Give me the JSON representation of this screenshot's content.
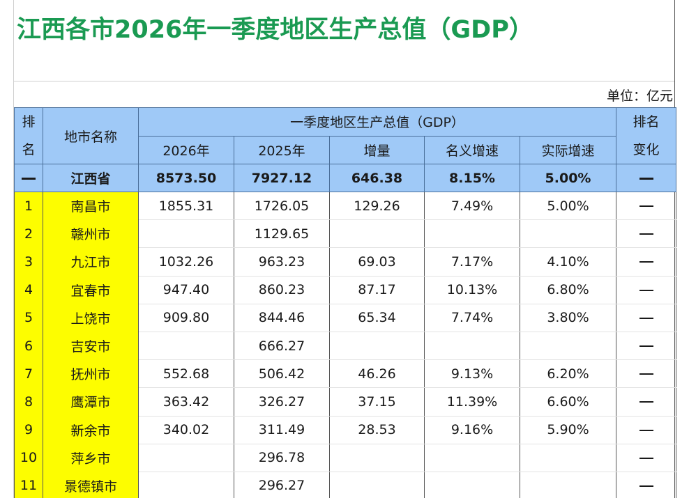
{
  "title": "江西各市2026年一季度地区生产总值（GDP）",
  "unit_label": "单位：亿元",
  "colors": {
    "title": "#1a9a52",
    "header_bg": "#9fc9f7",
    "highlight_bg": "#fdfd00"
  },
  "table": {
    "headers": {
      "rank": "排名",
      "rank_top": "排",
      "rank_bottom": "名",
      "city_name": "地市名称",
      "group": "一季度地区生产总值（GDP）",
      "year_2026": "2026年",
      "year_2025": "2025年",
      "increment": "增量",
      "nominal_growth": "名义增速",
      "real_growth": "实际增速",
      "rank_change_top": "排名",
      "rank_change_bottom": "变化"
    },
    "province": {
      "rank": "—",
      "name": "江西省",
      "gdp_2026": "8573.50",
      "gdp_2025": "7927.12",
      "increment": "646.38",
      "nominal_growth": "8.15%",
      "real_growth": "5.00%",
      "rank_change": "—"
    },
    "rows": [
      {
        "rank": "1",
        "name": "南昌市",
        "gdp_2026": "1855.31",
        "gdp_2025": "1726.05",
        "increment": "129.26",
        "nominal_growth": "7.49%",
        "real_growth": "5.00%",
        "rank_change": "—"
      },
      {
        "rank": "2",
        "name": "赣州市",
        "gdp_2026": "",
        "gdp_2025": "1129.65",
        "increment": "",
        "nominal_growth": "",
        "real_growth": "",
        "rank_change": "—"
      },
      {
        "rank": "3",
        "name": "九江市",
        "gdp_2026": "1032.26",
        "gdp_2025": "963.23",
        "increment": "69.03",
        "nominal_growth": "7.17%",
        "real_growth": "4.10%",
        "rank_change": "—"
      },
      {
        "rank": "4",
        "name": "宜春市",
        "gdp_2026": "947.40",
        "gdp_2025": "860.23",
        "increment": "87.17",
        "nominal_growth": "10.13%",
        "real_growth": "6.80%",
        "rank_change": "—"
      },
      {
        "rank": "5",
        "name": "上饶市",
        "gdp_2026": "909.80",
        "gdp_2025": "844.46",
        "increment": "65.34",
        "nominal_growth": "7.74%",
        "real_growth": "3.80%",
        "rank_change": "—"
      },
      {
        "rank": "6",
        "name": "吉安市",
        "gdp_2026": "",
        "gdp_2025": "666.27",
        "increment": "",
        "nominal_growth": "",
        "real_growth": "",
        "rank_change": "—"
      },
      {
        "rank": "7",
        "name": "抚州市",
        "gdp_2026": "552.68",
        "gdp_2025": "506.42",
        "increment": "46.26",
        "nominal_growth": "9.13%",
        "real_growth": "6.20%",
        "rank_change": "—"
      },
      {
        "rank": "8",
        "name": "鹰潭市",
        "gdp_2026": "363.42",
        "gdp_2025": "326.27",
        "increment": "37.15",
        "nominal_growth": "11.39%",
        "real_growth": "6.60%",
        "rank_change": "—"
      },
      {
        "rank": "9",
        "name": "新余市",
        "gdp_2026": "340.02",
        "gdp_2025": "311.49",
        "increment": "28.53",
        "nominal_growth": "9.16%",
        "real_growth": "5.90%",
        "rank_change": "—"
      },
      {
        "rank": "10",
        "name": "萍乡市",
        "gdp_2026": "",
        "gdp_2025": "296.78",
        "increment": "",
        "nominal_growth": "",
        "real_growth": "",
        "rank_change": "—"
      },
      {
        "rank": "11",
        "name": "景德镇市",
        "gdp_2026": "",
        "gdp_2025": "296.27",
        "increment": "",
        "nominal_growth": "",
        "real_growth": "",
        "rank_change": "—"
      }
    ]
  }
}
